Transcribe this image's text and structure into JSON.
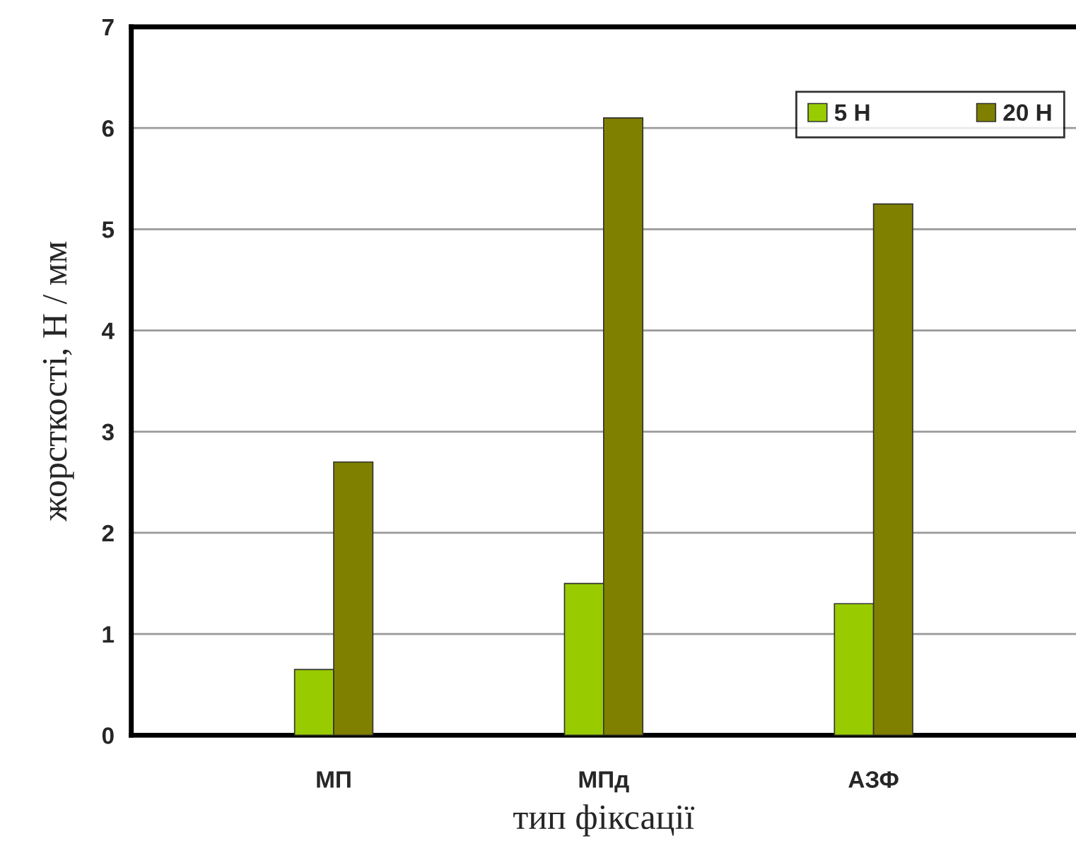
{
  "chart_data": {
    "type": "bar",
    "xlabel": "тип фіксації",
    "ylabel": "жорсткості, Н / мм",
    "categories": [
      null,
      "МП",
      null,
      "МПд",
      null,
      "АЗФ",
      null
    ],
    "series": [
      {
        "name": "5 Н",
        "color": "#99cc00",
        "values": [
          null,
          0.65,
          null,
          1.5,
          null,
          1.3,
          null
        ]
      },
      {
        "name": "20 Н",
        "color": "#808000",
        "values": [
          null,
          2.7,
          null,
          6.1,
          null,
          5.25,
          null
        ]
      }
    ],
    "ylim": [
      0,
      7
    ],
    "yticks": [
      0,
      1,
      2,
      3,
      4,
      5,
      6,
      7
    ],
    "grid": "y",
    "legend": "top right"
  }
}
